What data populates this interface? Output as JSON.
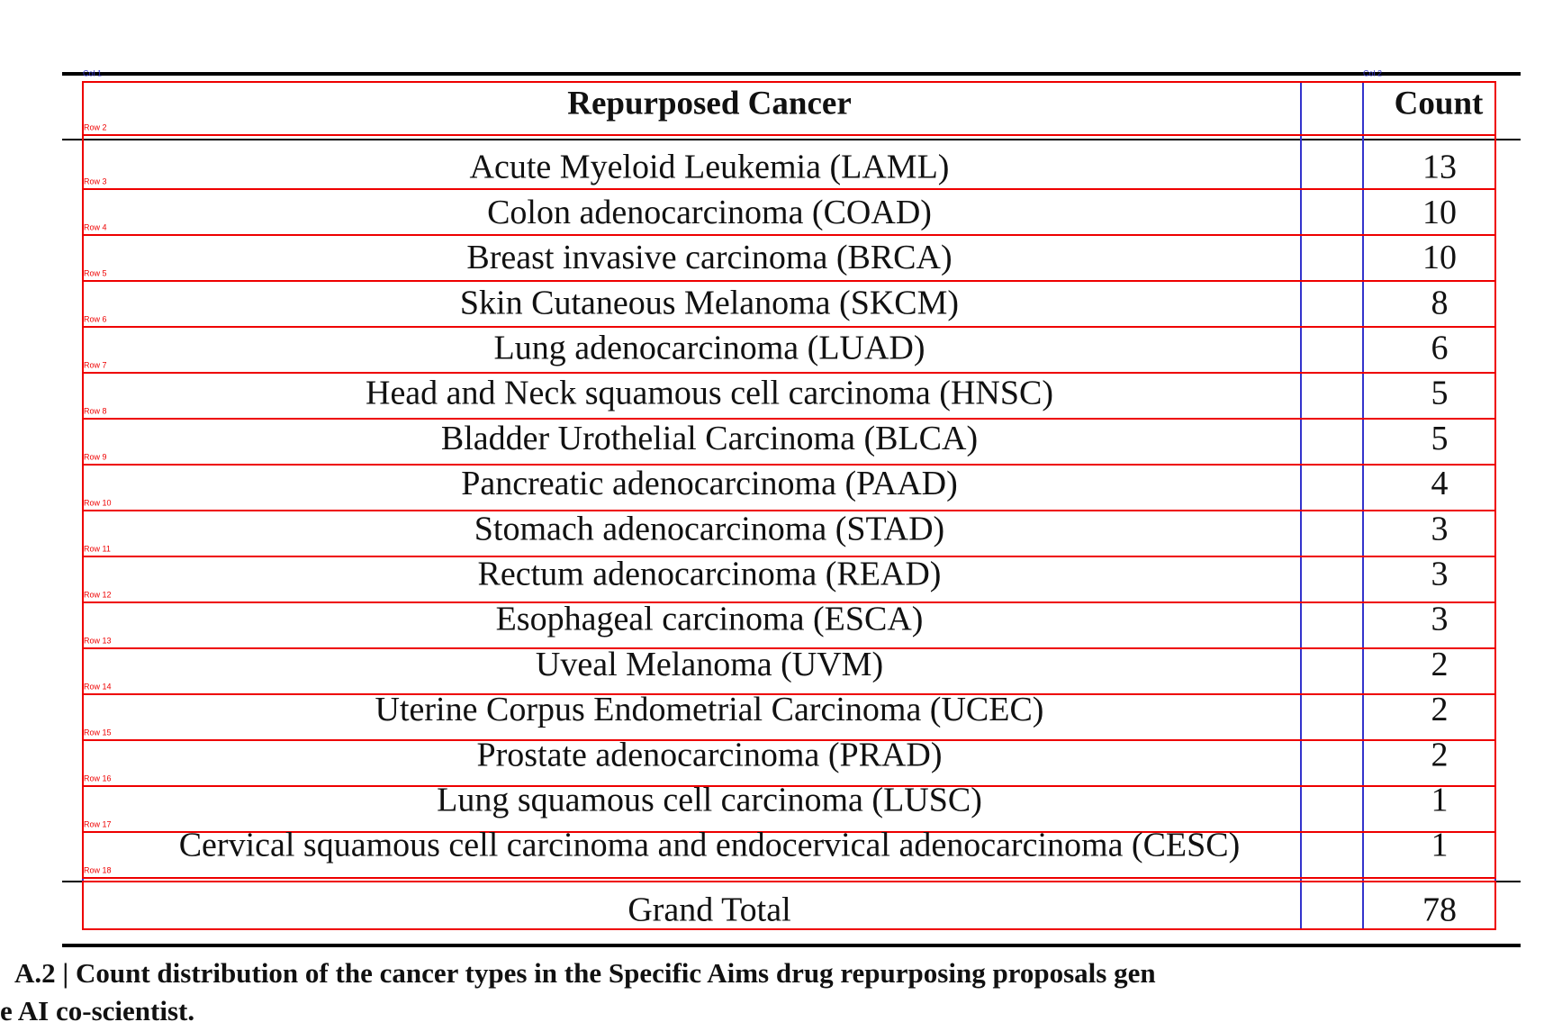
{
  "table": {
    "header": [
      "Repurposed Cancer",
      "Count"
    ],
    "rows": [
      [
        "Acute Myeloid Leukemia (LAML)",
        13
      ],
      [
        "Colon adenocarcinoma (COAD)",
        10
      ],
      [
        "Breast invasive carcinoma (BRCA)",
        10
      ],
      [
        "Skin Cutaneous Melanoma (SKCM)",
        8
      ],
      [
        "Lung adenocarcinoma (LUAD)",
        6
      ],
      [
        "Head and Neck squamous cell carcinoma (HNSC)",
        5
      ],
      [
        "Bladder Urothelial Carcinoma (BLCA)",
        5
      ],
      [
        "Pancreatic adenocarcinoma (PAAD)",
        4
      ],
      [
        "Stomach adenocarcinoma (STAD)",
        3
      ],
      [
        "Rectum adenocarcinoma (READ)",
        3
      ],
      [
        "Esophageal carcinoma (ESCA)",
        3
      ],
      [
        "Uveal Melanoma (UVM)",
        2
      ],
      [
        "Uterine Corpus Endometrial Carcinoma (UCEC)",
        2
      ],
      [
        "Prostate adenocarcinoma (PRAD)",
        2
      ],
      [
        "Lung squamous cell carcinoma (LUSC)",
        1
      ],
      [
        "Cervical squamous cell carcinoma and endocervical adenocarcinoma (CESC)",
        1
      ]
    ],
    "total": [
      "Grand Total",
      78
    ]
  },
  "annotations": {
    "col_labels": [
      "Col 1",
      "Col 2"
    ],
    "row_labels": [
      "Row 2",
      "Row 3",
      "Row 4",
      "Row 5",
      "Row 6",
      "Row 7",
      "Row 8",
      "Row 9",
      "Row 10",
      "Row 11",
      "Row 12",
      "Row 13",
      "Row 14",
      "Row 15",
      "Row 16",
      "Row 17",
      "Row 18"
    ]
  },
  "caption": [
    "A.2 | Count distribution of the cancer types in the Specific Aims drug repurposing proposals gen",
    "e AI co-scientist."
  ]
}
